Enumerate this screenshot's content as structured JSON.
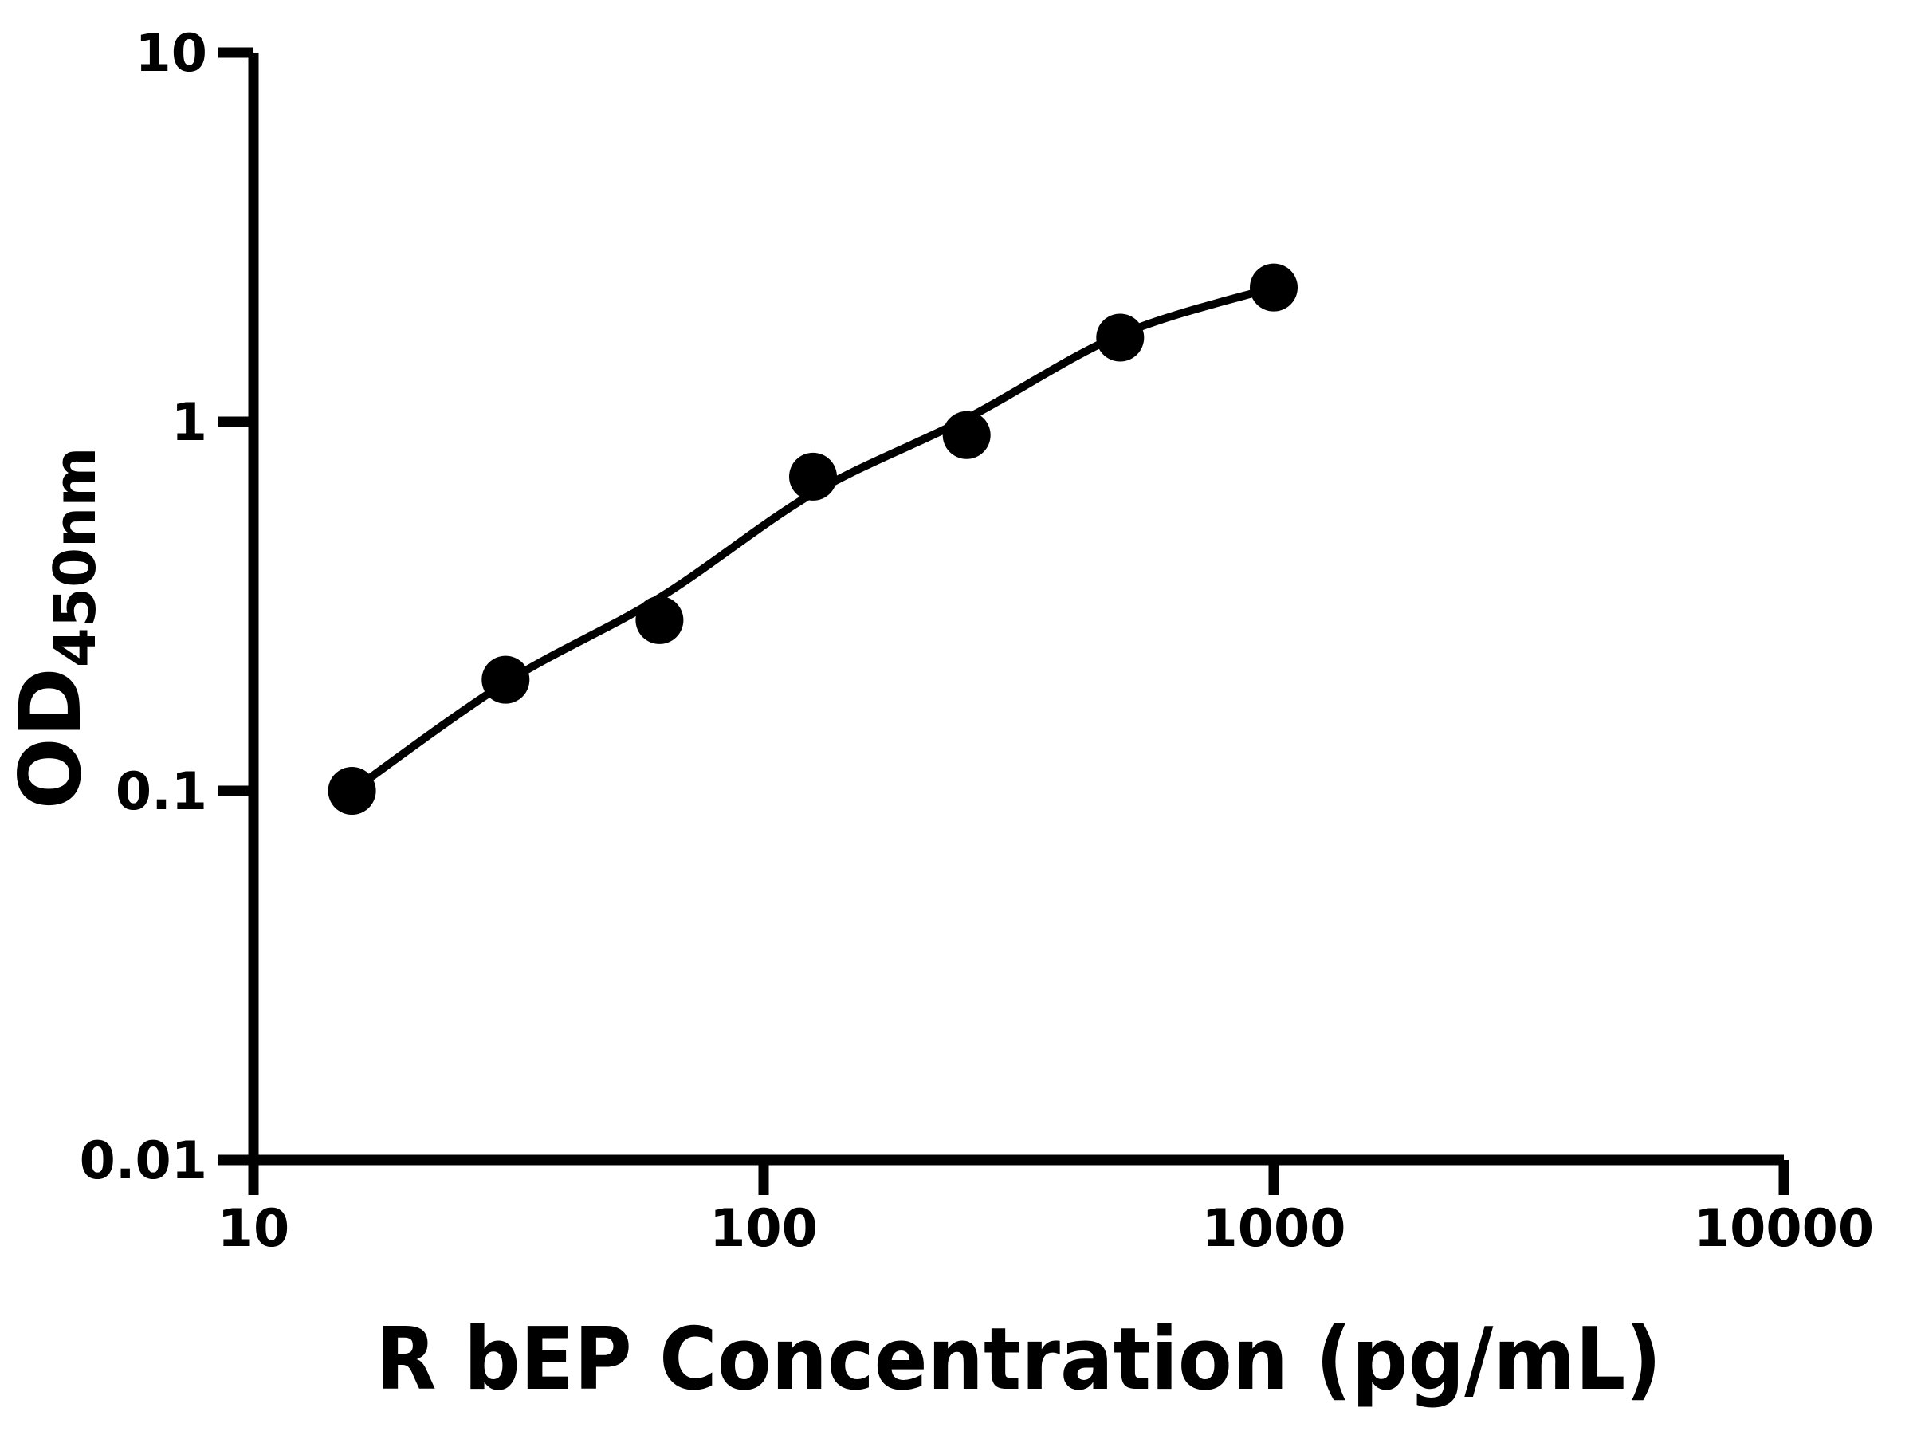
{
  "figure": {
    "background": "#ffffff",
    "foreground": "#000000"
  },
  "chart_data": {
    "type": "scatter",
    "title": "",
    "xlabel": "R bEP Concentration (pg/mL)",
    "ylabel_base": "OD",
    "ylabel_subscript": "450nm",
    "x_scale": "log",
    "y_scale": "log",
    "xlim": [
      10,
      10000
    ],
    "ylim": [
      0.01,
      10
    ],
    "grid": false,
    "legend": "none",
    "x_ticks": [
      {
        "v": 10,
        "label": "10"
      },
      {
        "v": 100,
        "label": "100"
      },
      {
        "v": 1000,
        "label": "1000"
      },
      {
        "v": 10000,
        "label": "10000"
      }
    ],
    "y_ticks": [
      {
        "v": 0.01,
        "label": "0.01"
      },
      {
        "v": 0.1,
        "label": "0.1"
      },
      {
        "v": 1,
        "label": "1"
      },
      {
        "v": 10,
        "label": "10"
      }
    ],
    "series": [
      {
        "name": "standard-curve-points",
        "marker": "circle",
        "marker_radius_px": 30,
        "color": "#000000",
        "points": [
          {
            "x": 15.6,
            "od": 0.1
          },
          {
            "x": 31.2,
            "od": 0.2
          },
          {
            "x": 62.5,
            "od": 0.29
          },
          {
            "x": 125,
            "od": 0.71
          },
          {
            "x": 250,
            "od": 0.92
          },
          {
            "x": 500,
            "od": 1.69
          },
          {
            "x": 1000,
            "od": 2.31
          }
        ]
      }
    ],
    "fit_curve": {
      "color": "#000000",
      "stroke_width_px": 10,
      "samples": [
        [
          15.6,
          0.1
        ],
        [
          31.3,
          0.197
        ],
        [
          62.4,
          0.333
        ],
        [
          125,
          0.64
        ],
        [
          250,
          1.02
        ],
        [
          500,
          1.72
        ],
        [
          1000,
          2.31
        ]
      ]
    }
  }
}
